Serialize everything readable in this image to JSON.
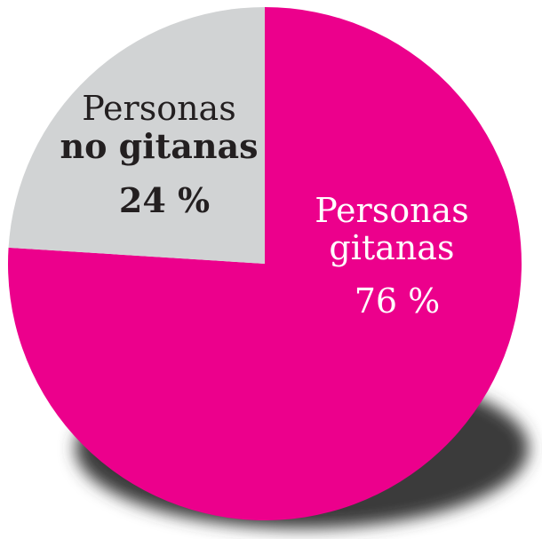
{
  "chart_data": {
    "type": "pie",
    "categories": [
      "Personas gitanas",
      "Personas no gitanas"
    ],
    "values": [
      76,
      24
    ],
    "slices": [
      {
        "label_line1": "Personas",
        "label_line2": "gitanas",
        "value_label": "76 %",
        "value": 76,
        "color": "#ec008c",
        "label_color": "#ffffff"
      },
      {
        "label_line1": "Personas",
        "label_line2": "no gitanas",
        "value_label": "24 %",
        "value": 24,
        "color": "#d1d3d4",
        "label_color": "#231f20"
      }
    ],
    "shadow_color": "#3a3a3a",
    "legend": "none"
  }
}
